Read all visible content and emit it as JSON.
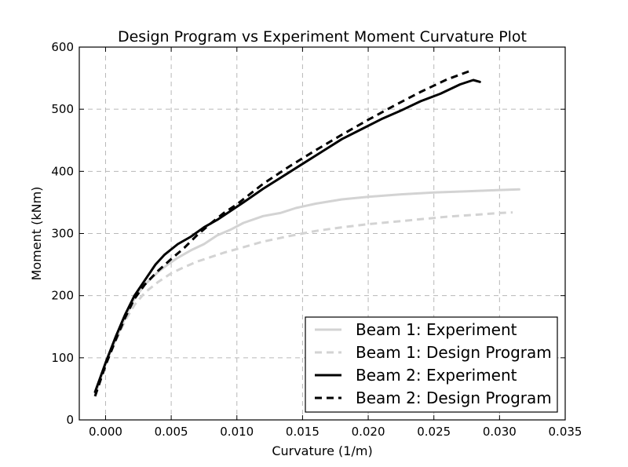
{
  "chart_data": {
    "type": "line",
    "title": "Design Program vs Experiment Moment Curvature Plot",
    "xlabel": "Curvature (1/m)",
    "ylabel": "Moment (kNm)",
    "xlim": [
      -0.002,
      0.035
    ],
    "ylim": [
      0,
      600
    ],
    "xticks": [
      0.0,
      0.005,
      0.01,
      0.015,
      0.02,
      0.025,
      0.03,
      0.035
    ],
    "xtick_labels": [
      "0.000",
      "0.005",
      "0.010",
      "0.015",
      "0.020",
      "0.025",
      "0.030",
      "0.035"
    ],
    "yticks": [
      0,
      100,
      200,
      300,
      400,
      500,
      600
    ],
    "ytick_labels": [
      "0",
      "100",
      "200",
      "300",
      "400",
      "500",
      "600"
    ],
    "grid": true,
    "legend_position": "lower-right",
    "series": [
      {
        "name": "Beam 1: Experiment",
        "color": "#d3d3d3",
        "style": "solid",
        "x": [
          -0.0008,
          0.0,
          0.0008,
          0.0015,
          0.0022,
          0.003,
          0.004,
          0.0048,
          0.0055,
          0.0065,
          0.0075,
          0.0085,
          0.0095,
          0.0105,
          0.012,
          0.0133,
          0.0145,
          0.016,
          0.018,
          0.02,
          0.0225,
          0.025,
          0.0275,
          0.03,
          0.0315
        ],
        "y": [
          40,
          90,
          130,
          165,
          195,
          218,
          238,
          251,
          261,
          273,
          283,
          297,
          306,
          317,
          328,
          333,
          341,
          348,
          355,
          359,
          363,
          366,
          368,
          370,
          371
        ]
      },
      {
        "name": "Beam 1: Design Program",
        "color": "#d3d3d3",
        "style": "dashed",
        "x": [
          -0.0008,
          0.0,
          0.0008,
          0.0015,
          0.0022,
          0.003,
          0.004,
          0.005,
          0.006,
          0.007,
          0.008,
          0.009,
          0.01,
          0.011,
          0.012,
          0.014,
          0.016,
          0.018,
          0.02,
          0.022,
          0.024,
          0.026,
          0.028,
          0.03,
          0.031
        ],
        "y": [
          40,
          90,
          128,
          160,
          185,
          205,
          222,
          236,
          246,
          255,
          262,
          269,
          275,
          281,
          287,
          296,
          304,
          310,
          315,
          319,
          323,
          327,
          330,
          333,
          334
        ]
      },
      {
        "name": "Beam 2: Experiment",
        "color": "#000000",
        "style": "solid",
        "x": [
          -0.0008,
          0.0,
          0.0008,
          0.0015,
          0.0022,
          0.003,
          0.0038,
          0.0045,
          0.0055,
          0.0065,
          0.0075,
          0.0085,
          0.0095,
          0.0105,
          0.012,
          0.0135,
          0.015,
          0.0165,
          0.018,
          0.0195,
          0.021,
          0.0225,
          0.024,
          0.0255,
          0.027,
          0.028,
          0.0285
        ],
        "y": [
          45,
          92,
          135,
          170,
          200,
          225,
          250,
          266,
          283,
          295,
          310,
          322,
          336,
          350,
          372,
          392,
          412,
          432,
          452,
          468,
          484,
          498,
          513,
          525,
          540,
          547,
          544
        ]
      },
      {
        "name": "Beam 2: Design Program",
        "color": "#000000",
        "style": "dashed",
        "x": [
          -0.0008,
          0.0,
          0.0008,
          0.0015,
          0.0022,
          0.003,
          0.004,
          0.005,
          0.006,
          0.007,
          0.008,
          0.009,
          0.01,
          0.012,
          0.014,
          0.016,
          0.018,
          0.02,
          0.022,
          0.024,
          0.026,
          0.0278
        ],
        "y": [
          38,
          88,
          130,
          165,
          195,
          218,
          240,
          259,
          277,
          298,
          316,
          333,
          347,
          380,
          408,
          434,
          459,
          483,
          506,
          528,
          548,
          562
        ]
      }
    ]
  }
}
